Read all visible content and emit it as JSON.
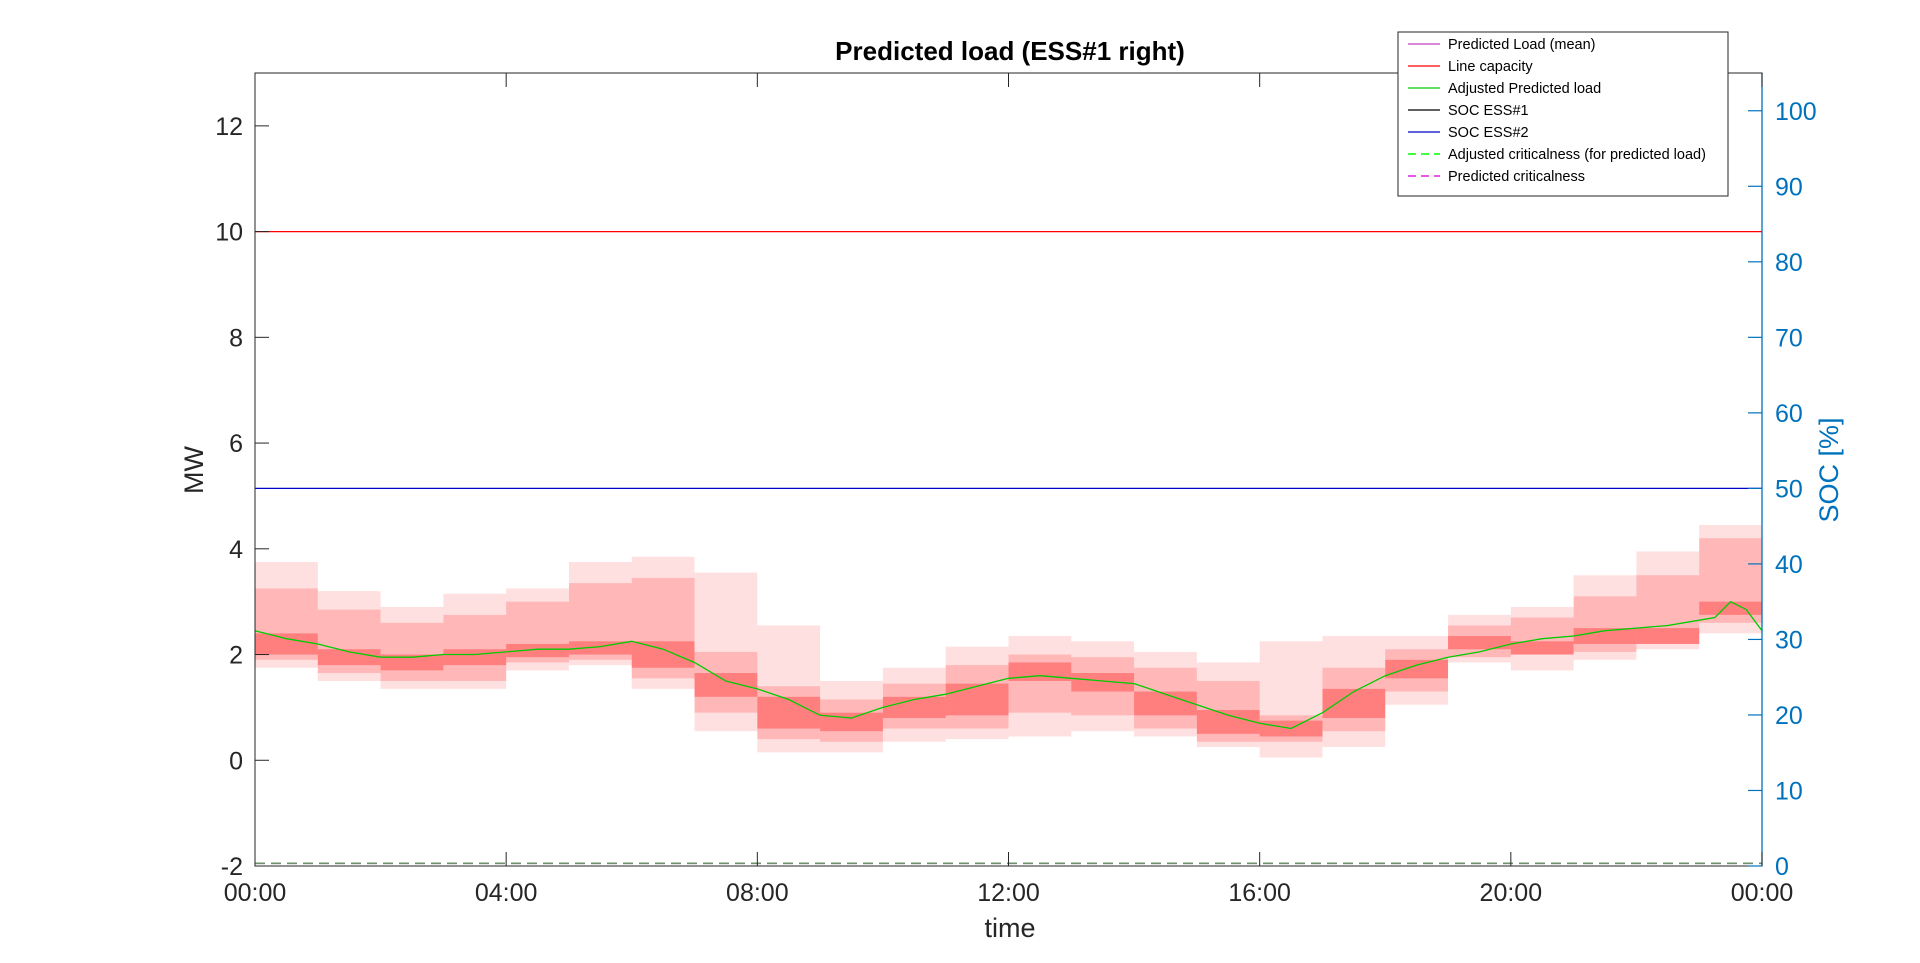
{
  "chart_data": {
    "type": "line",
    "title": "Predicted load (ESS#1 right)",
    "xlabel": "time",
    "ylabel": "MW",
    "ylabel_right": "SOC [%]",
    "x_ticks": [
      "00:00",
      "04:00",
      "08:00",
      "12:00",
      "16:00",
      "20:00",
      "00:00"
    ],
    "xlim_hours": [
      0,
      24
    ],
    "y_ticks": [
      -2,
      0,
      2,
      4,
      6,
      8,
      10,
      12
    ],
    "ylim": [
      -2,
      13
    ],
    "y_right_ticks": [
      0,
      10,
      20,
      30,
      40,
      50,
      60,
      70,
      80,
      90,
      100
    ],
    "ylim_right": [
      0,
      105
    ],
    "legend": {
      "placement": "top-right",
      "entries": [
        {
          "label": "Predicted Load (mean)",
          "color": "#BF40BF",
          "dash": false
        },
        {
          "label": "Line capacity",
          "color": "#FF0000",
          "dash": false
        },
        {
          "label": "Adjusted Predicted load",
          "color": "#00CC00",
          "dash": false
        },
        {
          "label": "SOC ESS#1",
          "color": "#000000",
          "dash": false
        },
        {
          "label": "SOC ESS#2",
          "color": "#0000CC",
          "dash": false
        },
        {
          "label": "Adjusted criticalness (for predicted load)",
          "color": "#00FF00",
          "dash": true
        },
        {
          "label": "Predicted criticalness",
          "color": "#DD22DD",
          "dash": true
        }
      ]
    },
    "colors": {
      "line_capacity": "#FF0000",
      "soc_ess2": "#0000CC",
      "adjusted_load": "#00CC00",
      "criticalness": "#DD22DD",
      "band": "#FF0000",
      "right_axis": "#0072BD"
    },
    "series": [
      {
        "name": "Line capacity",
        "kind": "hline",
        "axis": "left",
        "y": 10
      },
      {
        "name": "SOC ESS#2",
        "kind": "hline",
        "axis": "right",
        "y": 50
      },
      {
        "name": "Predicted criticalness",
        "kind": "hline",
        "axis": "left",
        "y": -1.95
      },
      {
        "name": "Adjusted criticalness (for predicted load)",
        "kind": "hline",
        "axis": "left",
        "y": -1.95
      },
      {
        "name": "Adjusted Predicted load",
        "kind": "line",
        "axis": "left",
        "x": [
          0,
          0.5,
          1,
          1.5,
          2,
          2.5,
          3,
          3.5,
          4,
          4.5,
          5,
          5.5,
          6,
          6.5,
          7,
          7.5,
          8,
          8.5,
          9,
          9.5,
          10,
          10.5,
          11,
          11.5,
          12,
          12.5,
          13,
          13.5,
          14,
          14.5,
          15,
          15.5,
          16,
          16.5,
          17,
          17.5,
          18,
          18.5,
          19,
          19.5,
          20,
          20.5,
          21,
          21.5,
          22,
          22.5,
          23,
          23.25,
          23.5,
          23.75,
          24
        ],
        "y": [
          2.45,
          2.3,
          2.2,
          2.05,
          1.95,
          1.95,
          2.0,
          2.0,
          2.05,
          2.1,
          2.1,
          2.15,
          2.25,
          2.1,
          1.85,
          1.5,
          1.35,
          1.15,
          0.85,
          0.8,
          1.0,
          1.15,
          1.25,
          1.4,
          1.55,
          1.6,
          1.55,
          1.5,
          1.45,
          1.25,
          1.05,
          0.85,
          0.7,
          0.6,
          0.9,
          1.3,
          1.6,
          1.8,
          1.95,
          2.05,
          2.2,
          2.3,
          2.35,
          2.45,
          2.5,
          2.55,
          2.65,
          2.7,
          3.0,
          2.85,
          2.45
        ]
      },
      {
        "name": "Prediction bands",
        "kind": "bands",
        "axis": "left",
        "hour_width": 1,
        "blocks": [
          {
            "h": 0,
            "outer": [
              1.75,
              3.75
            ],
            "mid": [
              1.9,
              3.25
            ],
            "inner": [
              2.0,
              2.4
            ]
          },
          {
            "h": 1,
            "outer": [
              1.5,
              3.2
            ],
            "mid": [
              1.65,
              2.85
            ],
            "inner": [
              1.8,
              2.1
            ]
          },
          {
            "h": 2,
            "outer": [
              1.35,
              2.9
            ],
            "mid": [
              1.5,
              2.6
            ],
            "inner": [
              1.7,
              2.0
            ]
          },
          {
            "h": 3,
            "outer": [
              1.35,
              3.15
            ],
            "mid": [
              1.5,
              2.75
            ],
            "inner": [
              1.8,
              2.1
            ]
          },
          {
            "h": 4,
            "outer": [
              1.7,
              3.25
            ],
            "mid": [
              1.85,
              3.0
            ],
            "inner": [
              1.95,
              2.2
            ]
          },
          {
            "h": 5,
            "outer": [
              1.8,
              3.75
            ],
            "mid": [
              1.9,
              3.35
            ],
            "inner": [
              2.0,
              2.25
            ]
          },
          {
            "h": 6,
            "outer": [
              1.35,
              3.85
            ],
            "mid": [
              1.55,
              3.45
            ],
            "inner": [
              1.75,
              2.25
            ]
          },
          {
            "h": 7,
            "outer": [
              0.55,
              3.55
            ],
            "mid": [
              0.9,
              2.05
            ],
            "inner": [
              1.2,
              1.65
            ]
          },
          {
            "h": 8,
            "outer": [
              0.15,
              2.55
            ],
            "mid": [
              0.4,
              1.4
            ],
            "inner": [
              0.6,
              1.2
            ]
          },
          {
            "h": 9,
            "outer": [
              0.15,
              1.5
            ],
            "mid": [
              0.35,
              1.15
            ],
            "inner": [
              0.55,
              0.9
            ]
          },
          {
            "h": 10,
            "outer": [
              0.35,
              1.75
            ],
            "mid": [
              0.6,
              1.45
            ],
            "inner": [
              0.8,
              1.2
            ]
          },
          {
            "h": 11,
            "outer": [
              0.4,
              2.15
            ],
            "mid": [
              0.6,
              1.8
            ],
            "inner": [
              0.85,
              1.45
            ]
          },
          {
            "h": 12,
            "outer": [
              0.45,
              2.35
            ],
            "mid": [
              0.9,
              2.0
            ],
            "inner": [
              1.5,
              1.85
            ]
          },
          {
            "h": 13,
            "outer": [
              0.55,
              2.25
            ],
            "mid": [
              0.85,
              1.95
            ],
            "inner": [
              1.3,
              1.65
            ]
          },
          {
            "h": 14,
            "outer": [
              0.45,
              2.05
            ],
            "mid": [
              0.6,
              1.75
            ],
            "inner": [
              0.85,
              1.3
            ]
          },
          {
            "h": 15,
            "outer": [
              0.25,
              1.85
            ],
            "mid": [
              0.35,
              1.5
            ],
            "inner": [
              0.5,
              0.95
            ]
          },
          {
            "h": 16,
            "outer": [
              0.05,
              2.25
            ],
            "mid": [
              0.35,
              0.85
            ],
            "inner": [
              0.45,
              0.75
            ]
          },
          {
            "h": 17,
            "outer": [
              0.25,
              2.35
            ],
            "mid": [
              0.55,
              1.75
            ],
            "inner": [
              0.8,
              1.35
            ]
          },
          {
            "h": 18,
            "outer": [
              1.05,
              2.35
            ],
            "mid": [
              1.3,
              2.1
            ],
            "inner": [
              1.55,
              1.9
            ]
          },
          {
            "h": 19,
            "outer": [
              1.85,
              2.75
            ],
            "mid": [
              1.95,
              2.55
            ],
            "inner": [
              2.1,
              2.35
            ]
          },
          {
            "h": 20,
            "outer": [
              1.7,
              2.9
            ],
            "mid": [
              2.0,
              2.7
            ],
            "inner": [
              2.0,
              2.25
            ]
          },
          {
            "h": 21,
            "outer": [
              1.9,
              3.5
            ],
            "mid": [
              2.05,
              3.1
            ],
            "inner": [
              2.2,
              2.5
            ]
          },
          {
            "h": 22,
            "outer": [
              2.1,
              3.95
            ],
            "mid": [
              2.2,
              3.5
            ],
            "inner": [
              2.2,
              2.5
            ]
          },
          {
            "h": 23,
            "outer": [
              2.4,
              4.45
            ],
            "mid": [
              2.6,
              4.2
            ],
            "inner": [
              2.75,
              3.0
            ]
          }
        ]
      }
    ]
  }
}
